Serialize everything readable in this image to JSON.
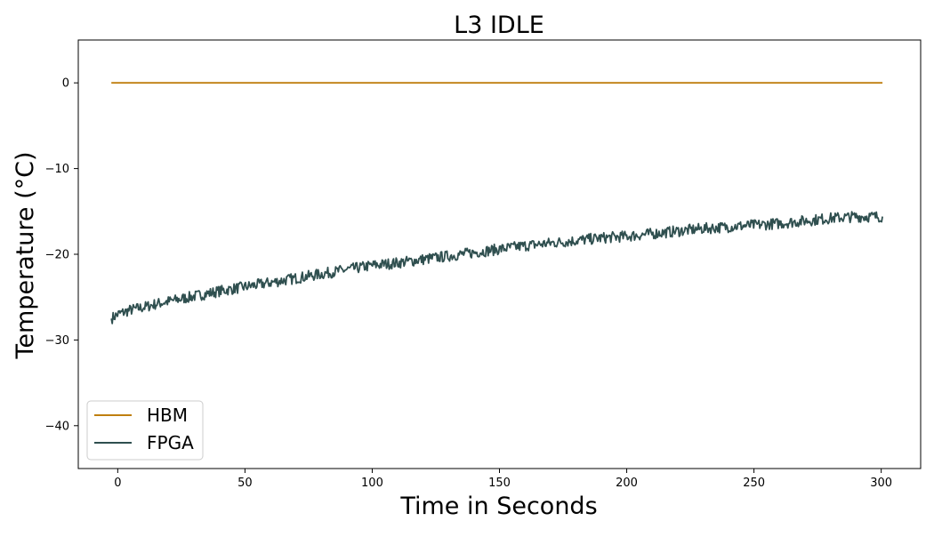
{
  "chart_data": {
    "type": "line",
    "title": "L3 IDLE",
    "xlabel": "Time in Seconds",
    "ylabel": "Temperature (°C)",
    "xlim": [
      -15.5,
      315.5
    ],
    "ylim": [
      -45,
      5
    ],
    "xticks": [
      0,
      50,
      100,
      150,
      200,
      250,
      300
    ],
    "yticks": [
      0,
      -10,
      -20,
      -30,
      -40
    ],
    "legend": {
      "position": "lower-left"
    },
    "grid": false,
    "series": [
      {
        "name": "HBM",
        "color": "#bf7f0f",
        "x": [
          -2.5,
          300.5
        ],
        "y": [
          0,
          0
        ]
      },
      {
        "name": "FPGA",
        "color": "#2f4f4f",
        "x": [
          -2.5,
          0,
          5,
          10,
          15,
          20,
          25,
          30,
          35,
          40,
          50,
          60,
          70,
          80,
          90,
          100,
          110,
          120,
          130,
          140,
          150,
          160,
          170,
          180,
          190,
          200,
          210,
          220,
          230,
          240,
          250,
          260,
          270,
          280,
          290,
          300.5
        ],
        "y": [
          -27.5,
          -27.0,
          -26.5,
          -26.2,
          -25.8,
          -25.5,
          -25.2,
          -24.9,
          -24.6,
          -24.3,
          -23.8,
          -23.3,
          -22.8,
          -22.3,
          -21.8,
          -21.3,
          -21.0,
          -20.6,
          -20.2,
          -19.8,
          -19.4,
          -19.0,
          -18.7,
          -18.4,
          -18.1,
          -17.9,
          -17.6,
          -17.3,
          -17.0,
          -16.8,
          -16.6,
          -16.4,
          -16.1,
          -15.8,
          -15.6,
          -15.6
        ]
      }
    ]
  }
}
